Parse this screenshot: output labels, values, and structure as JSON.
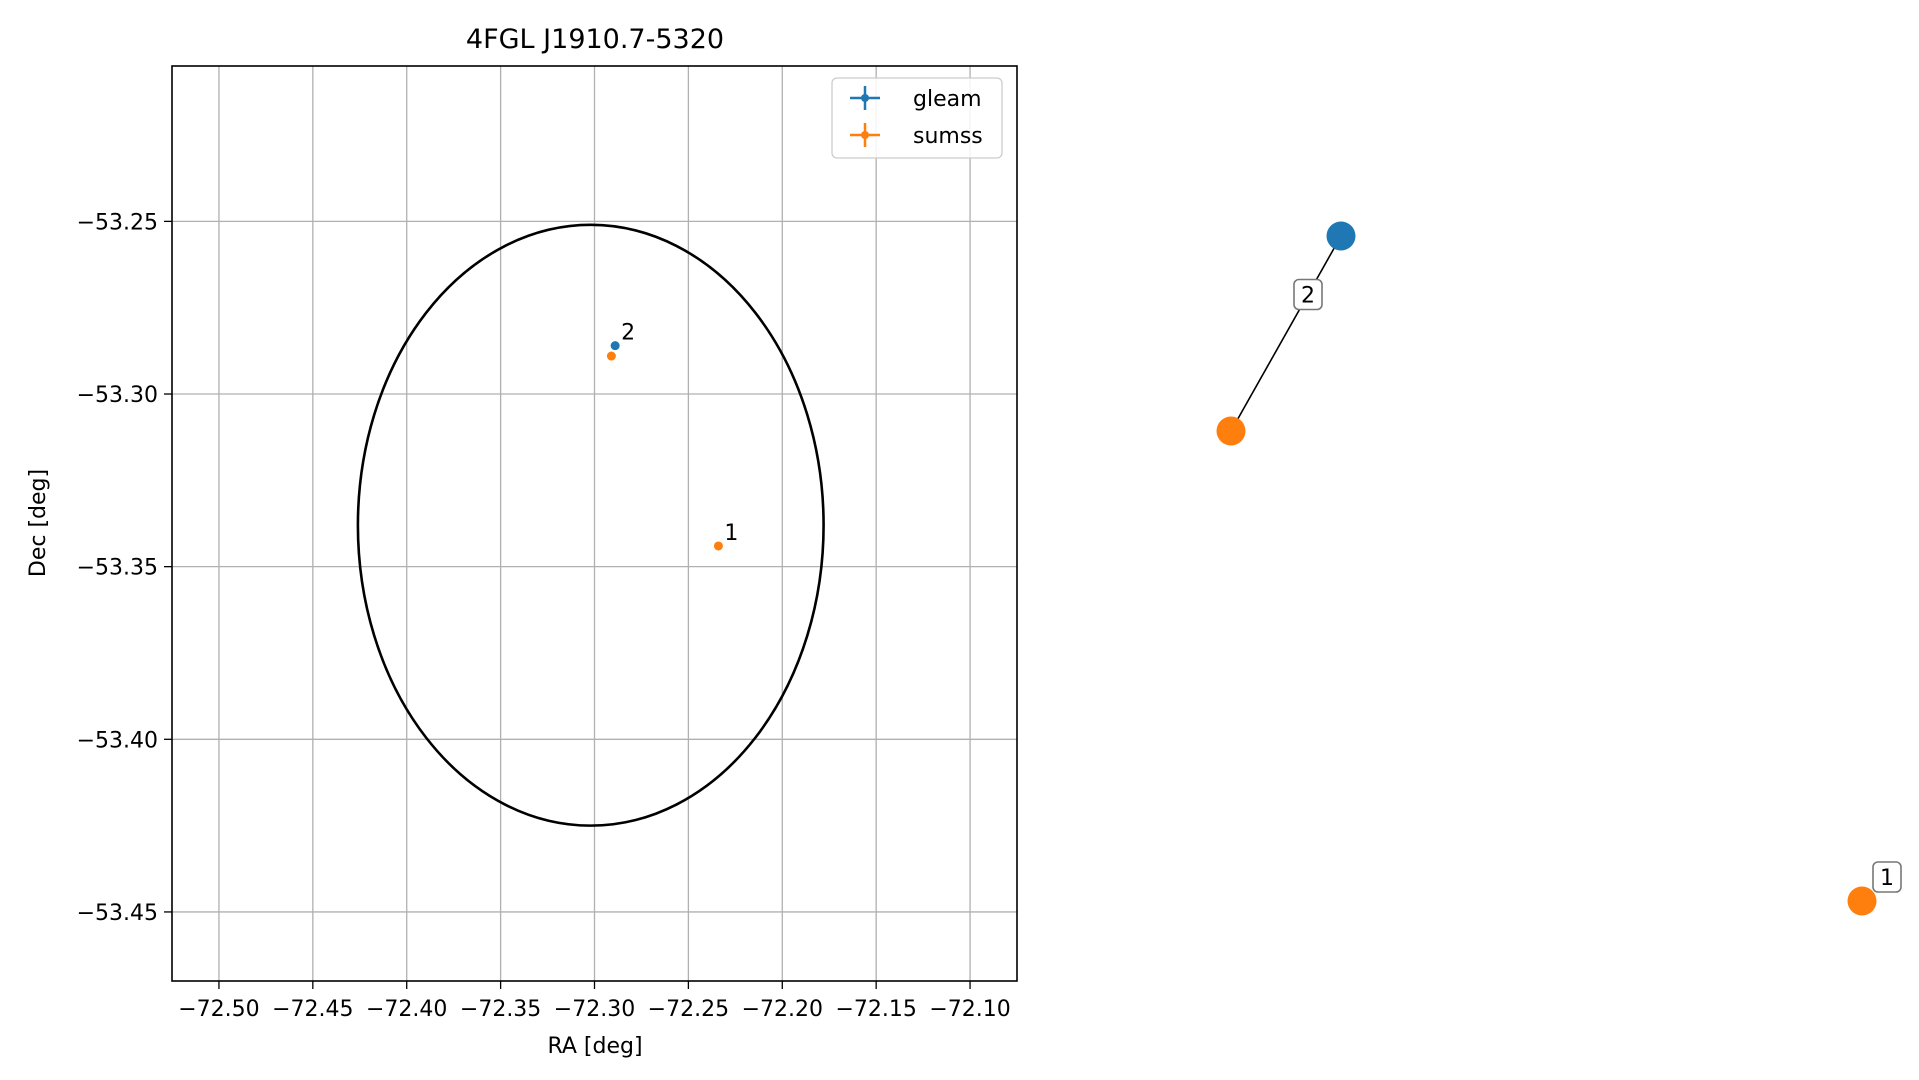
{
  "chart_data": [
    {
      "type": "scatter",
      "title": "4FGL J1910.7-5320",
      "xlabel": "RA [deg]",
      "ylabel": "Dec [deg]",
      "xlim": [
        -72.525,
        -72.075
      ],
      "ylim": [
        -53.47,
        -53.205
      ],
      "x_ticks": [
        -72.5,
        -72.45,
        -72.4,
        -72.35,
        -72.3,
        -72.25,
        -72.2,
        -72.15,
        -72.1
      ],
      "x_tick_labels": [
        "−72.50",
        "−72.45",
        "−72.40",
        "−72.35",
        "−72.30",
        "−72.25",
        "−72.20",
        "−72.15",
        "−72.10"
      ],
      "y_ticks": [
        -53.25,
        -53.3,
        -53.35,
        -53.4,
        -53.45
      ],
      "y_tick_labels": [
        "−53.25",
        "−53.30",
        "−53.35",
        "−53.40",
        "−53.45"
      ],
      "grid": true,
      "legend_position": "top-right",
      "ellipse": {
        "center": [
          -72.302,
          -53.338
        ],
        "semi_ra": 0.124,
        "semi_dec": 0.087,
        "color": "#000000"
      },
      "series": [
        {
          "name": "gleam",
          "color": "#1f77b4",
          "points": [
            {
              "x": -72.289,
              "y": -53.286,
              "label": "2"
            }
          ]
        },
        {
          "name": "sumss",
          "color": "#ff7f0e",
          "points": [
            {
              "x": -72.291,
              "y": -53.289,
              "label": ""
            },
            {
              "x": -72.234,
              "y": -53.344,
              "label": "1"
            }
          ]
        }
      ]
    },
    {
      "type": "graph",
      "nodes": [
        {
          "id": "gleam-2",
          "color": "#1f77b4"
        },
        {
          "id": "sumss-2",
          "color": "#ff7f0e"
        },
        {
          "id": "sumss-1",
          "color": "#ff7f0e"
        }
      ],
      "edges": [
        {
          "from": "gleam-2",
          "to": "sumss-2",
          "label": "2"
        }
      ],
      "node_labels": [
        {
          "node": "sumss-1",
          "label": "1"
        }
      ]
    }
  ]
}
